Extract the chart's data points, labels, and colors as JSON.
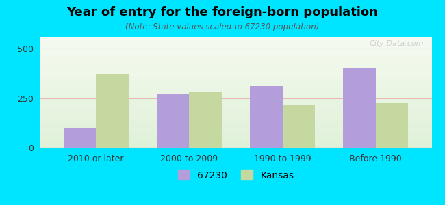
{
  "title": "Year of entry for the foreign-born population",
  "subtitle": "(Note: State values scaled to 67230 population)",
  "categories": [
    "2010 or later",
    "2000 to 2009",
    "1990 to 1999",
    "Before 1990"
  ],
  "values_67230": [
    100,
    270,
    310,
    400
  ],
  "values_kansas": [
    370,
    280,
    215,
    225
  ],
  "color_67230": "#b39ddb",
  "color_kansas": "#c5d8a0",
  "background_outer": "#00e5ff",
  "background_chart_top": "#f0f7e8",
  "background_chart_bottom": "#e8f5e9",
  "ylim": [
    0,
    560
  ],
  "yticks": [
    0,
    250,
    500
  ],
  "bar_width": 0.35,
  "legend_labels": [
    "67230",
    "Kansas"
  ],
  "watermark": "City-Data.com"
}
